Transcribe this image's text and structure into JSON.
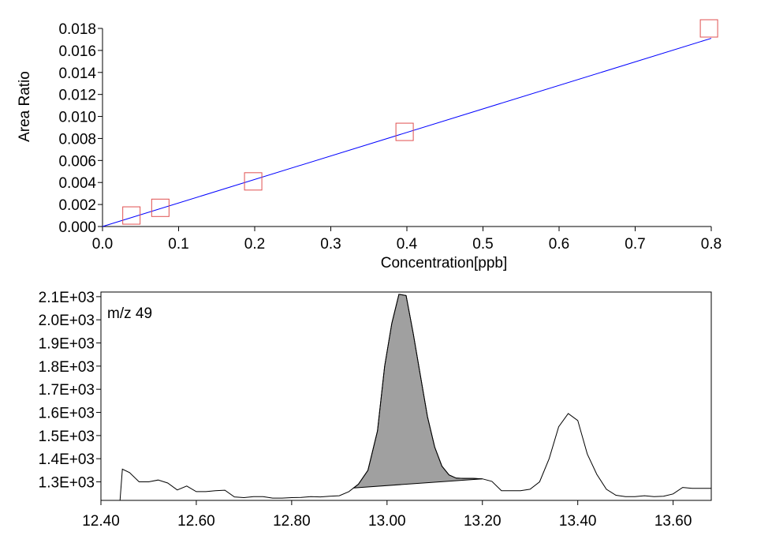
{
  "chart_data": [
    {
      "type": "scatter",
      "xlabel": "Concentration[ppb]",
      "ylabel": "Area Ratio",
      "xlim": [
        0,
        0.8
      ],
      "ylim": [
        0,
        0.018
      ],
      "x_ticks": [
        "0.0",
        "0.1",
        "0.2",
        "0.3",
        "0.4",
        "0.5",
        "0.6",
        "0.7",
        "0.8"
      ],
      "y_ticks": [
        "0.000",
        "0.002",
        "0.004",
        "0.006",
        "0.008",
        "0.010",
        "0.012",
        "0.014",
        "0.016",
        "0.018"
      ],
      "points": [
        {
          "x": 0.038,
          "y": 0.001
        },
        {
          "x": 0.076,
          "y": 0.0017
        },
        {
          "x": 0.198,
          "y": 0.0041
        },
        {
          "x": 0.397,
          "y": 0.0086
        },
        {
          "x": 0.797,
          "y": 0.018
        }
      ],
      "fit_line": {
        "x0": 0,
        "y0": 0,
        "x1": 0.8,
        "y1": 0.0171
      },
      "colors": {
        "points": "#e05050",
        "fit": "#0000ff"
      }
    },
    {
      "type": "line",
      "annotation": "m/z 49",
      "xlim": [
        12.4,
        13.68
      ],
      "ylim": [
        1220,
        2120
      ],
      "x_ticks": [
        "12.40",
        "12.60",
        "12.80",
        "13.00",
        "13.20",
        "13.40",
        "13.60"
      ],
      "y_ticks": [
        "1.3E+03",
        "1.4E+03",
        "1.5E+03",
        "1.6E+03",
        "1.7E+03",
        "1.8E+03",
        "1.9E+03",
        "2.0E+03",
        "2.1E+03"
      ],
      "x": [
        12.44,
        12.445,
        12.46,
        12.48,
        12.5,
        12.52,
        12.54,
        12.56,
        12.58,
        12.6,
        12.62,
        12.64,
        12.66,
        12.68,
        12.7,
        12.72,
        12.74,
        12.76,
        12.78,
        12.8,
        12.82,
        12.84,
        12.86,
        12.88,
        12.9,
        12.92,
        12.94,
        12.96,
        12.98,
        12.995,
        13.01,
        13.025,
        13.04,
        13.055,
        13.07,
        13.085,
        13.1,
        13.115,
        13.13,
        13.145,
        13.16,
        13.18,
        13.2,
        13.22,
        13.24,
        13.26,
        13.28,
        13.3,
        13.32,
        13.34,
        13.36,
        13.38,
        13.4,
        13.42,
        13.44,
        13.46,
        13.48,
        13.5,
        13.52,
        13.54,
        13.56,
        13.58,
        13.6,
        13.62,
        13.64,
        13.66,
        13.68
      ],
      "values": [
        1220,
        1355,
        1340,
        1300,
        1300,
        1308,
        1295,
        1265,
        1282,
        1258,
        1258,
        1262,
        1264,
        1235,
        1232,
        1236,
        1236,
        1230,
        1230,
        1232,
        1233,
        1236,
        1235,
        1238,
        1240,
        1258,
        1290,
        1350,
        1520,
        1800,
        1985,
        2110,
        2105,
        1940,
        1760,
        1580,
        1450,
        1368,
        1330,
        1316,
        1315,
        1315,
        1313,
        1302,
        1262,
        1262,
        1262,
        1268,
        1300,
        1400,
        1538,
        1595,
        1565,
        1420,
        1332,
        1268,
        1242,
        1236,
        1236,
        1240,
        1236,
        1238,
        1248,
        1276,
        1272,
        1272,
        1272
      ],
      "integrated_peak": {
        "start": 12.93,
        "end": 13.2
      },
      "colors": {
        "trace": "#000000",
        "peak_fill": "#a0a0a0"
      }
    }
  ]
}
